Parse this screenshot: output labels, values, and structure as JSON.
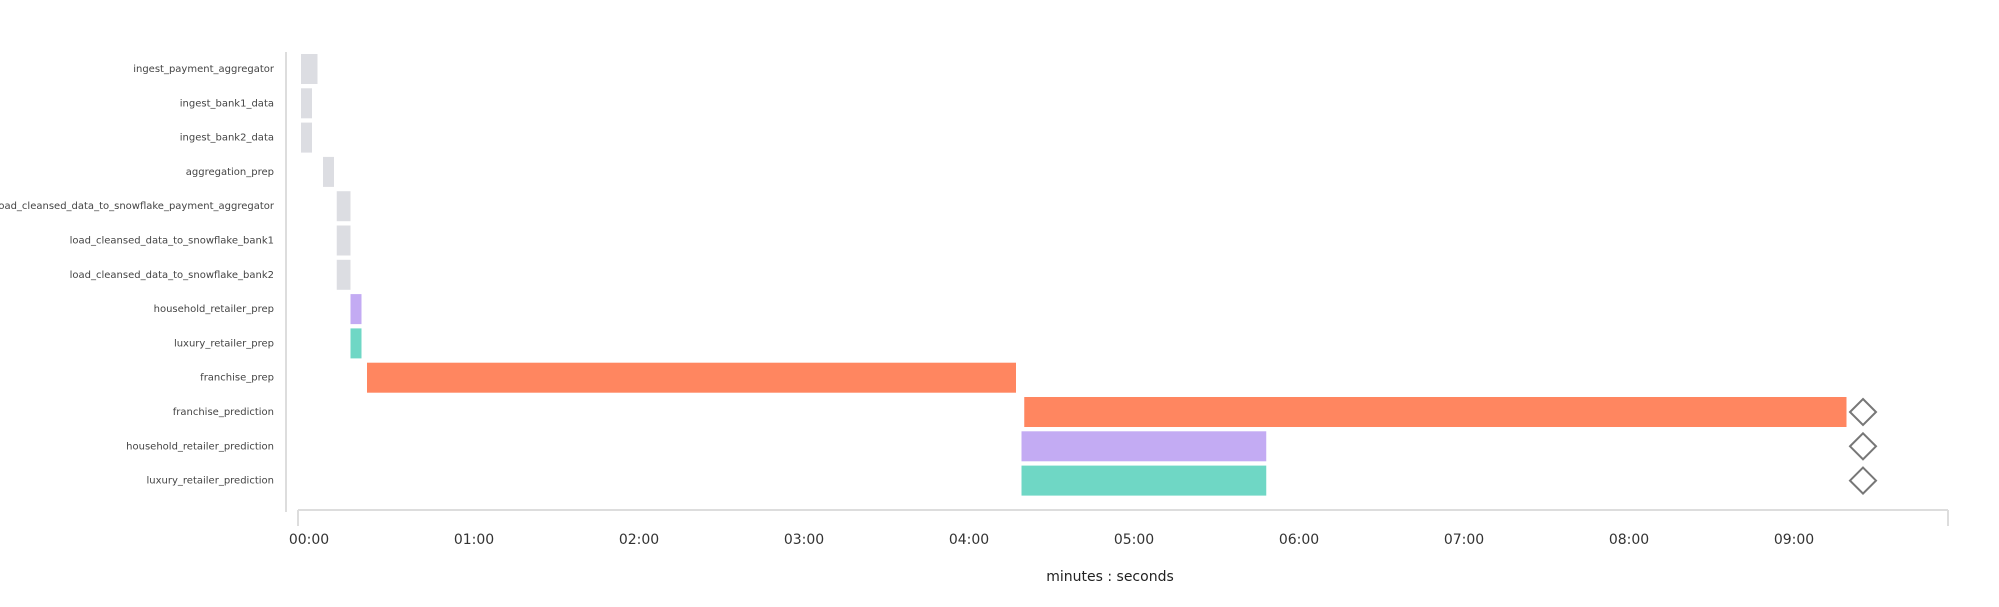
{
  "chart_data": {
    "type": "gantt",
    "categories": [
      "ingest_payment_aggregator",
      "ingest_bank1_data",
      "ingest_bank2_data",
      "aggregation_prep",
      "load_cleansed_data_to_snowflake_payment_aggregator",
      "load_cleansed_data_to_snowflake_bank1",
      "load_cleansed_data_to_snowflake_bank2",
      "household_retailer_prep",
      "luxury_retailer_prep",
      "franchise_prep",
      "franchise_prediction",
      "household_retailer_prediction",
      "luxury_retailer_prediction"
    ],
    "start": [
      0,
      0,
      0,
      8,
      13,
      13,
      13,
      18,
      18,
      24,
      263,
      262,
      262
    ],
    "end": [
      6,
      4,
      4,
      12,
      18,
      18,
      18,
      22,
      22,
      260,
      562,
      351,
      351
    ],
    "colors": [
      "#dcdde2",
      "#dcdde2",
      "#dcdde2",
      "#dcdde2",
      "#dcdde2",
      "#dcdde2",
      "#dcdde2",
      "#c3abf3",
      "#6fd7c5",
      "#ff8660",
      "#ff8660",
      "#c3abf3",
      "#6fd7c5"
    ],
    "milestones": [
      null,
      null,
      null,
      null,
      null,
      null,
      null,
      null,
      null,
      null,
      568,
      568,
      568
    ],
    "xlim": [
      0,
      600
    ],
    "xticks": [
      {
        "value": 0,
        "label": "00:00"
      },
      {
        "value": 60,
        "label": "01:00"
      },
      {
        "value": 120,
        "label": "02:00"
      },
      {
        "value": 180,
        "label": "03:00"
      },
      {
        "value": 240,
        "label": "04:00"
      },
      {
        "value": 300,
        "label": "05:00"
      },
      {
        "value": 360,
        "label": "06:00"
      },
      {
        "value": 420,
        "label": "07:00"
      },
      {
        "value": 480,
        "label": "08:00"
      },
      {
        "value": 540,
        "label": "09:00"
      }
    ],
    "xlabel": "minutes : seconds"
  }
}
